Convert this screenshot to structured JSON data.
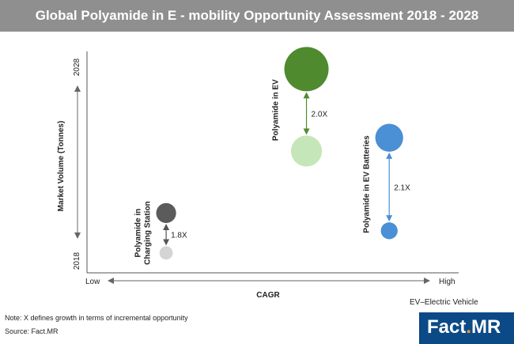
{
  "header": {
    "title": "Global Polyamide in E - mobility Opportunity Assessment 2018 - 2028"
  },
  "chart_data": {
    "type": "scatter",
    "title": "Global Polyamide in E - mobility Opportunity Assessment 2018 - 2028",
    "xlabel": "CAGR",
    "ylabel": "Market Volume (Tonnes)",
    "x_ends": [
      "Low",
      "High"
    ],
    "y_ends": [
      "2018",
      "2028"
    ],
    "grid": false,
    "groups": [
      {
        "label_lines": [
          "Polyamide in",
          "Charging Station"
        ],
        "multiplier": "1.8X",
        "x_position": 0.22,
        "point_2018": {
          "y": 0.09,
          "size": 0.3,
          "color": "#d4d4d4"
        },
        "point_2028": {
          "y": 0.27,
          "size": 0.45,
          "color": "#5b5b5b"
        },
        "arrow_color": "#555555"
      },
      {
        "label_lines": [
          "Polyamide in EV"
        ],
        "multiplier": "2.0X",
        "x_position": 0.61,
        "point_2018": {
          "y": 0.55,
          "size": 0.7,
          "color": "#c5e6b8"
        },
        "point_2028": {
          "y": 0.92,
          "size": 1.0,
          "color": "#4f8a2f"
        },
        "arrow_color": "#4f8a2f"
      },
      {
        "label_lines": [
          "Polyamide in EV Batteries"
        ],
        "multiplier": "2.1X",
        "x_position": 0.84,
        "point_2018": {
          "y": 0.19,
          "size": 0.38,
          "color": "#4b8fd4"
        },
        "point_2028": {
          "y": 0.61,
          "size": 0.63,
          "color": "#4b8fd4"
        },
        "arrow_color": "#4b8fd4"
      }
    ]
  },
  "footer": {
    "note": "Note: X defines growth in terms of incremental opportunity",
    "source": "Source: Fact.MR",
    "ev_note": "EV–Electric Vehicle",
    "logo_main": "Fact",
    "logo_dot": ".",
    "logo_end": "MR"
  }
}
